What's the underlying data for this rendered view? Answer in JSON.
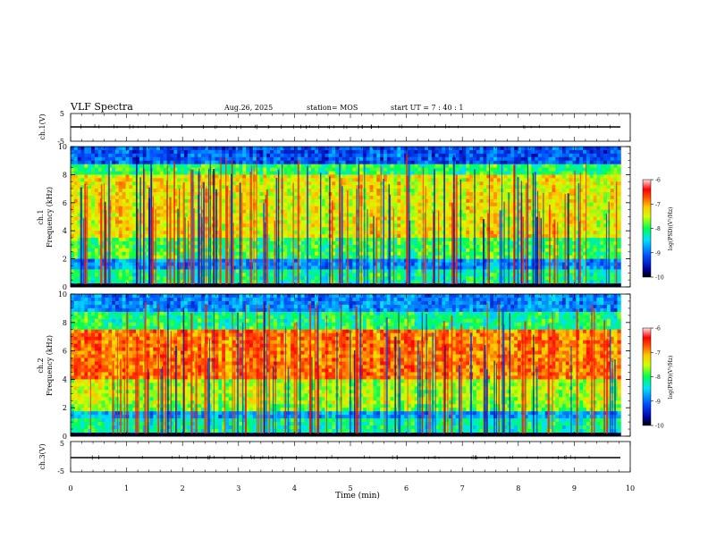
{
  "header": {
    "title": "VLF Spectra",
    "date": "Aug.26, 2025",
    "station": "station= MOS",
    "start_ut": "start  UT  =   7 : 40 : 1"
  },
  "chart_data": [
    {
      "type": "line",
      "panel": "ch1-waveform",
      "ylabel": "ch.1(V)",
      "yticks": [
        "5",
        "-5"
      ],
      "ylim": [
        -5,
        5
      ],
      "baseline": 0
    },
    {
      "type": "heatmap",
      "panel": "ch1-spectrogram",
      "ylabel": "Frequency (kHz)",
      "ylabel_prefix": "ch.1",
      "ylim": [
        0,
        10
      ],
      "yticks": [
        "0",
        "2",
        "4",
        "6",
        "8",
        "10"
      ],
      "colorbar": {
        "label": "log(PSD)(V²/Hz)",
        "ticks": [
          "-6",
          "-7",
          "-8",
          "-9",
          "-10"
        ],
        "range": [
          -10,
          -6
        ]
      }
    },
    {
      "type": "heatmap",
      "panel": "ch2-spectrogram",
      "ylabel": "Frequency (kHz)",
      "ylabel_prefix": "ch.2",
      "ylim": [
        0,
        10
      ],
      "yticks": [
        "0",
        "2",
        "4",
        "6",
        "8",
        "10"
      ],
      "colorbar": {
        "label": "log(PSD)(V²/Hz)",
        "ticks": [
          "-6",
          "-7",
          "-8",
          "-9",
          "-10"
        ],
        "range": [
          -10,
          -6
        ]
      }
    },
    {
      "type": "line",
      "panel": "ch3-waveform",
      "ylabel": "ch.3(V)",
      "yticks": [
        "5",
        "-5"
      ],
      "ylim": [
        -5,
        5
      ],
      "baseline": 0
    }
  ],
  "xaxis": {
    "label": "Time (min)",
    "ticks": [
      "0",
      "1",
      "2",
      "3",
      "4",
      "5",
      "6",
      "7",
      "8",
      "9",
      "10"
    ],
    "xlim": [
      0,
      10
    ],
    "data_end": 9.83
  },
  "colors": {
    "colormap": [
      "#000080",
      "#0000ff",
      "#00c8ff",
      "#00ff64",
      "#c8ff00",
      "#ffff00",
      "#ff7800",
      "#ff0000",
      "#ffc8c8"
    ]
  }
}
